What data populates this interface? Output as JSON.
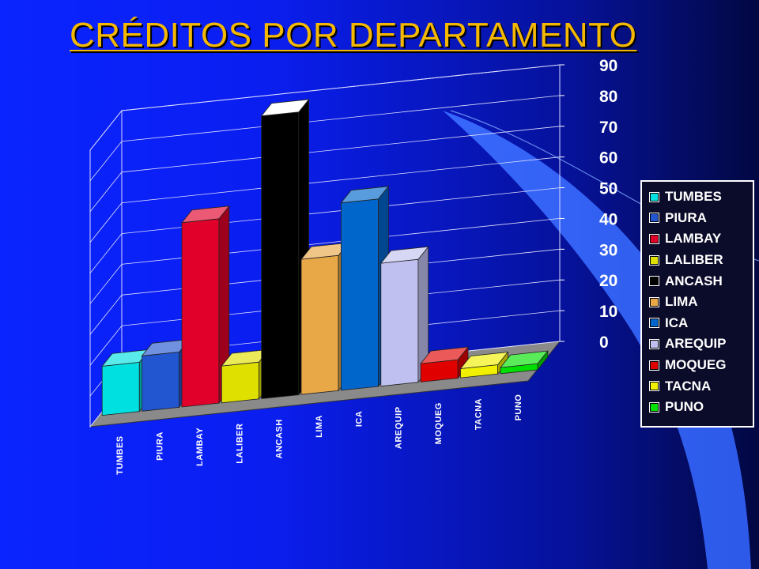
{
  "slide": {
    "title": "CRÉDITOS POR DEPARTAMENTO"
  },
  "chart_data": {
    "type": "bar",
    "categories": [
      "TUMBES",
      "PIURA",
      "LAMBAY",
      "LALIBER",
      "ANCASH",
      "LIMA",
      "ICA",
      "AREQUIP",
      "MOQUEG",
      "TACNA",
      "PUNO"
    ],
    "values": [
      16,
      18,
      60,
      12,
      92,
      44,
      61,
      40,
      6,
      3,
      2
    ],
    "colors": [
      "#00e0e0",
      "#2255d0",
      "#e0002a",
      "#e0e000",
      "#000000",
      "#e8a848",
      "#0066cc",
      "#c0c0f0",
      "#e00000",
      "#f0f000",
      "#00e000"
    ],
    "ytick_labels": [
      "0",
      "10",
      "20",
      "30",
      "40",
      "50",
      "60",
      "70",
      "80",
      "90"
    ],
    "ylim": [
      0,
      90
    ],
    "legend": {
      "position": "right",
      "entries": [
        "TUMBES",
        "PIURA",
        "LAMBAY",
        "LALIBER",
        "ANCASH",
        "LIMA",
        "ICA",
        "AREQUIP",
        "MOQUEG",
        "TACNA",
        "PUNO"
      ]
    },
    "grid": true,
    "three_d": true
  }
}
